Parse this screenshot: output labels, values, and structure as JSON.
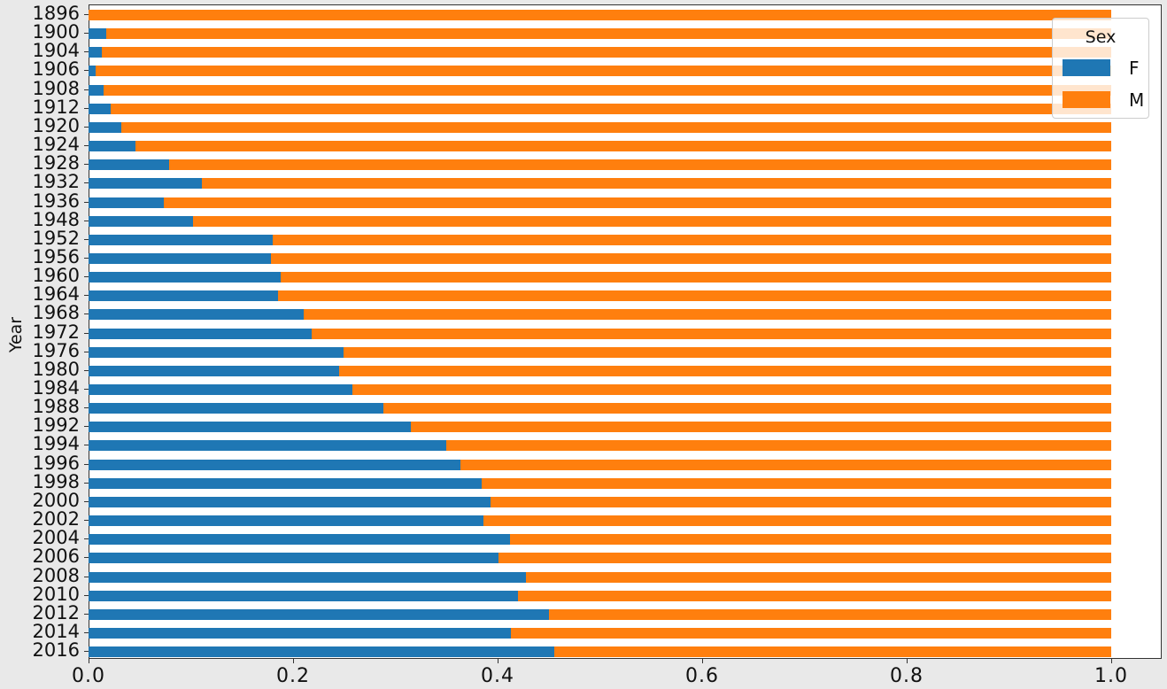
{
  "chart_data": {
    "type": "bar",
    "orientation": "horizontal",
    "stacked": true,
    "title": "",
    "xlabel": "",
    "ylabel": "Year",
    "xlim": [
      0,
      1.05
    ],
    "xticks": [
      "0.0",
      "0.2",
      "0.4",
      "0.6",
      "0.8",
      "1.0"
    ],
    "categories": [
      "1896",
      "1900",
      "1904",
      "1906",
      "1908",
      "1912",
      "1920",
      "1924",
      "1928",
      "1932",
      "1936",
      "1948",
      "1952",
      "1956",
      "1960",
      "1964",
      "1968",
      "1972",
      "1976",
      "1980",
      "1984",
      "1988",
      "1992",
      "1994",
      "1996",
      "1998",
      "2000",
      "2002",
      "2004",
      "2006",
      "2008",
      "2010",
      "2012",
      "2014",
      "2016"
    ],
    "series": [
      {
        "name": "F",
        "color": "#1f77b4",
        "values": [
          0.0,
          0.017,
          0.013,
          0.007,
          0.015,
          0.022,
          0.032,
          0.046,
          0.079,
          0.111,
          0.074,
          0.102,
          0.18,
          0.178,
          0.188,
          0.185,
          0.21,
          0.218,
          0.249,
          0.245,
          0.258,
          0.288,
          0.315,
          0.35,
          0.364,
          0.384,
          0.393,
          0.386,
          0.412,
          0.401,
          0.428,
          0.42,
          0.45,
          0.413,
          0.455
        ]
      },
      {
        "name": "M",
        "color": "#ff7f0e",
        "values": [
          1.0,
          0.983,
          0.987,
          0.993,
          0.985,
          0.978,
          0.968,
          0.954,
          0.921,
          0.889,
          0.926,
          0.898,
          0.82,
          0.822,
          0.812,
          0.815,
          0.79,
          0.782,
          0.751,
          0.755,
          0.742,
          0.712,
          0.685,
          0.65,
          0.636,
          0.616,
          0.607,
          0.614,
          0.588,
          0.599,
          0.572,
          0.58,
          0.55,
          0.587,
          0.545
        ]
      }
    ],
    "legend": {
      "title": "Sex",
      "position": "upper right",
      "entries": [
        "F",
        "M"
      ]
    },
    "grid": false
  }
}
